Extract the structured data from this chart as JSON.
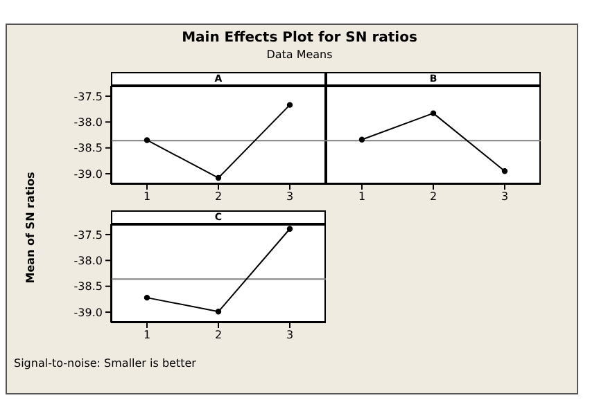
{
  "chart_data": [
    {
      "type": "line",
      "title": "A",
      "categories": [
        "1",
        "2",
        "3"
      ],
      "series": [
        {
          "color": "#000000",
          "values": [
            -38.35,
            -39.08,
            -37.67
          ]
        }
      ],
      "ylim": [
        -39.2,
        -37.3
      ],
      "yticks": [
        {
          "value": -37.5,
          "label": "-37.5"
        },
        {
          "value": -38,
          "label": "-38.0"
        },
        {
          "value": -38.5,
          "label": "-38.5"
        },
        {
          "value": -39,
          "label": "-39.0"
        }
      ],
      "ref_lines": [
        {
          "axis": "y",
          "value": -38.36,
          "color": "#808080"
        }
      ],
      "marker": "circle",
      "line_style": "solid",
      "grid": false,
      "legend": false,
      "subtitle": "Data Means",
      "ylabel": "Mean of SN ratios",
      "annotations": [
        "Main Effects Plot for SN ratios",
        "Signal-to-noise: Smaller is better"
      ]
    },
    {
      "type": "line",
      "title": "B",
      "categories": [
        "1",
        "2",
        "3"
      ],
      "series": [
        {
          "color": "#000000",
          "values": [
            -38.34,
            -37.83,
            -38.95
          ]
        }
      ],
      "ylim": [
        -39.2,
        -37.3
      ],
      "yticks": [
        {
          "value": -37.5,
          "label": null
        },
        {
          "value": -38,
          "label": null
        },
        {
          "value": -38.5,
          "label": null
        },
        {
          "value": -39,
          "label": null
        }
      ],
      "tick_labels": "x",
      "ref_lines": [
        {
          "axis": "y",
          "value": -38.36,
          "color": "#808080"
        }
      ],
      "marker": "circle",
      "line_style": "solid",
      "grid": false,
      "legend": false
    },
    {
      "type": "line",
      "title": "C",
      "categories": [
        "1",
        "2",
        "3"
      ],
      "series": [
        {
          "color": "#000000",
          "values": [
            -38.72,
            -38.99,
            -37.39
          ]
        }
      ],
      "ylim": [
        -39.2,
        -37.3
      ],
      "yticks": [
        {
          "value": -37.5,
          "label": "-37.5"
        },
        {
          "value": -38,
          "label": "-38.0"
        },
        {
          "value": -38.5,
          "label": "-38.5"
        },
        {
          "value": -39,
          "label": "-39.0"
        }
      ],
      "ref_lines": [
        {
          "axis": "y",
          "value": -38.36,
          "color": "#808080"
        }
      ],
      "marker": "circle",
      "line_style": "solid",
      "grid": false,
      "legend": false
    }
  ]
}
